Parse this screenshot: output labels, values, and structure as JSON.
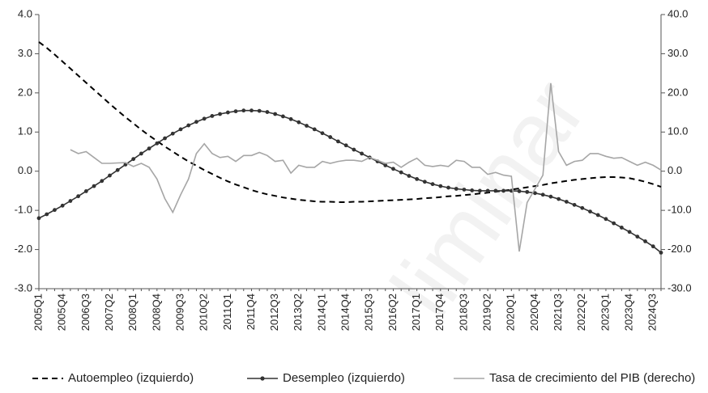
{
  "chart_data": {
    "type": "line",
    "watermark": "liminar",
    "categories": [
      "2005Q1",
      null,
      null,
      "2005Q4",
      null,
      null,
      "2006Q3",
      null,
      null,
      "2007Q2",
      null,
      null,
      "2008Q1",
      null,
      null,
      "2008Q4",
      null,
      null,
      "2009Q3",
      null,
      null,
      "2010Q2",
      null,
      null,
      "2011Q1",
      null,
      null,
      "2011Q4",
      null,
      null,
      "2012Q3",
      null,
      null,
      "2013Q2",
      null,
      null,
      "2014Q1",
      null,
      null,
      "2014Q4",
      null,
      null,
      "2015Q3",
      null,
      null,
      "2016Q2",
      null,
      null,
      "2017Q1",
      null,
      null,
      "2017Q4",
      null,
      null,
      "2018Q3",
      null,
      null,
      "2019Q2",
      null,
      null,
      "2020Q1",
      null,
      null,
      "2020Q4",
      null,
      null,
      "2021Q3",
      null,
      null,
      "2022Q2",
      null,
      null,
      "2023Q1",
      null,
      null,
      "2023Q4",
      null,
      null,
      "2024Q3",
      null
    ],
    "series": [
      {
        "name": "Autoempleo (izquierdo)",
        "color": "#000000",
        "line_style": "dashed",
        "axis": "y",
        "values": [
          3.3,
          3.15,
          2.98,
          2.8,
          2.62,
          2.44,
          2.26,
          2.08,
          1.9,
          1.72,
          1.55,
          1.38,
          1.22,
          1.06,
          0.91,
          0.77,
          0.63,
          0.5,
          0.37,
          0.25,
          0.14,
          0.03,
          -0.07,
          -0.17,
          -0.26,
          -0.34,
          -0.41,
          -0.48,
          -0.54,
          -0.59,
          -0.63,
          -0.67,
          -0.7,
          -0.73,
          -0.75,
          -0.77,
          -0.78,
          -0.78,
          -0.79,
          -0.79,
          -0.78,
          -0.78,
          -0.77,
          -0.76,
          -0.75,
          -0.74,
          -0.73,
          -0.72,
          -0.71,
          -0.69,
          -0.68,
          -0.66,
          -0.64,
          -0.63,
          -0.61,
          -0.59,
          -0.57,
          -0.55,
          -0.52,
          -0.5,
          -0.47,
          -0.44,
          -0.41,
          -0.38,
          -0.35,
          -0.31,
          -0.28,
          -0.25,
          -0.22,
          -0.2,
          -0.18,
          -0.16,
          -0.15,
          -0.15,
          -0.16,
          -0.18,
          -0.22,
          -0.27,
          -0.33,
          -0.4
        ]
      },
      {
        "name": "Desempleo (izquierdo)",
        "color": "#333333",
        "line_style": "solid",
        "marker": "circle",
        "axis": "y",
        "values": [
          -1.2,
          -1.1,
          -0.99,
          -0.88,
          -0.76,
          -0.64,
          -0.51,
          -0.38,
          -0.25,
          -0.11,
          0.03,
          0.17,
          0.31,
          0.45,
          0.58,
          0.71,
          0.84,
          0.96,
          1.07,
          1.17,
          1.26,
          1.34,
          1.41,
          1.46,
          1.5,
          1.53,
          1.55,
          1.55,
          1.54,
          1.51,
          1.46,
          1.4,
          1.33,
          1.25,
          1.16,
          1.07,
          0.97,
          0.87,
          0.76,
          0.66,
          0.55,
          0.45,
          0.35,
          0.25,
          0.15,
          0.06,
          -0.03,
          -0.12,
          -0.2,
          -0.27,
          -0.33,
          -0.38,
          -0.42,
          -0.45,
          -0.47,
          -0.49,
          -0.5,
          -0.5,
          -0.5,
          -0.5,
          -0.5,
          -0.51,
          -0.53,
          -0.56,
          -0.6,
          -0.65,
          -0.71,
          -0.78,
          -0.86,
          -0.94,
          -1.03,
          -1.12,
          -1.22,
          -1.33,
          -1.44,
          -1.55,
          -1.67,
          -1.79,
          -1.92,
          -2.08
        ]
      },
      {
        "name": "Tasa de crecimiento del PIB (derecho)",
        "color": "#a6a6a6",
        "line_style": "solid",
        "axis": "y2",
        "values": [
          null,
          null,
          null,
          null,
          5.5,
          4.5,
          5.0,
          3.5,
          2.0,
          2.0,
          2.1,
          2.2,
          1.2,
          2.0,
          1.0,
          -2.0,
          -7.0,
          -10.5,
          -6.0,
          -2.0,
          4.5,
          7.0,
          4.5,
          3.5,
          3.8,
          2.5,
          4.0,
          4.0,
          4.8,
          4.0,
          2.5,
          2.8,
          -0.5,
          1.5,
          1.0,
          1.0,
          2.5,
          2.0,
          2.5,
          2.8,
          2.8,
          2.5,
          3.5,
          2.8,
          2.0,
          2.3,
          1.0,
          2.3,
          3.3,
          1.5,
          1.2,
          1.5,
          1.2,
          2.8,
          2.5,
          1.0,
          1.0,
          -0.8,
          -0.3,
          -1.0,
          -1.3,
          -20.5,
          -8.0,
          -4.5,
          -1.0,
          22.5,
          5.0,
          1.5,
          2.5,
          2.8,
          4.5,
          4.5,
          3.8,
          3.3,
          3.5,
          2.5,
          1.5,
          2.3,
          1.5,
          0.3
        ]
      }
    ],
    "ylim": [
      -3,
      4
    ],
    "yticks": [
      {
        "value": -3,
        "label": "-3.0"
      },
      {
        "value": -2,
        "label": "-2.0"
      },
      {
        "value": -1,
        "label": "-1.0"
      },
      {
        "value": 0,
        "label": "0.0"
      },
      {
        "value": 1,
        "label": "1.0"
      },
      {
        "value": 2,
        "label": "2.0"
      },
      {
        "value": 3,
        "label": "3.0"
      },
      {
        "value": 4,
        "label": "4.0"
      }
    ],
    "y2lim": [
      -30,
      40
    ],
    "y2ticks": [
      {
        "value": -30,
        "label": "-30.0"
      },
      {
        "value": -20,
        "label": "-20.0"
      },
      {
        "value": -10,
        "label": "-10.0"
      },
      {
        "value": 0,
        "label": "0.0"
      },
      {
        "value": 10,
        "label": "10.0"
      },
      {
        "value": 20,
        "label": "20.0"
      },
      {
        "value": 30,
        "label": "30.0"
      },
      {
        "value": 40,
        "label": "40.0"
      }
    ],
    "grid": false,
    "legend": "bottom"
  }
}
